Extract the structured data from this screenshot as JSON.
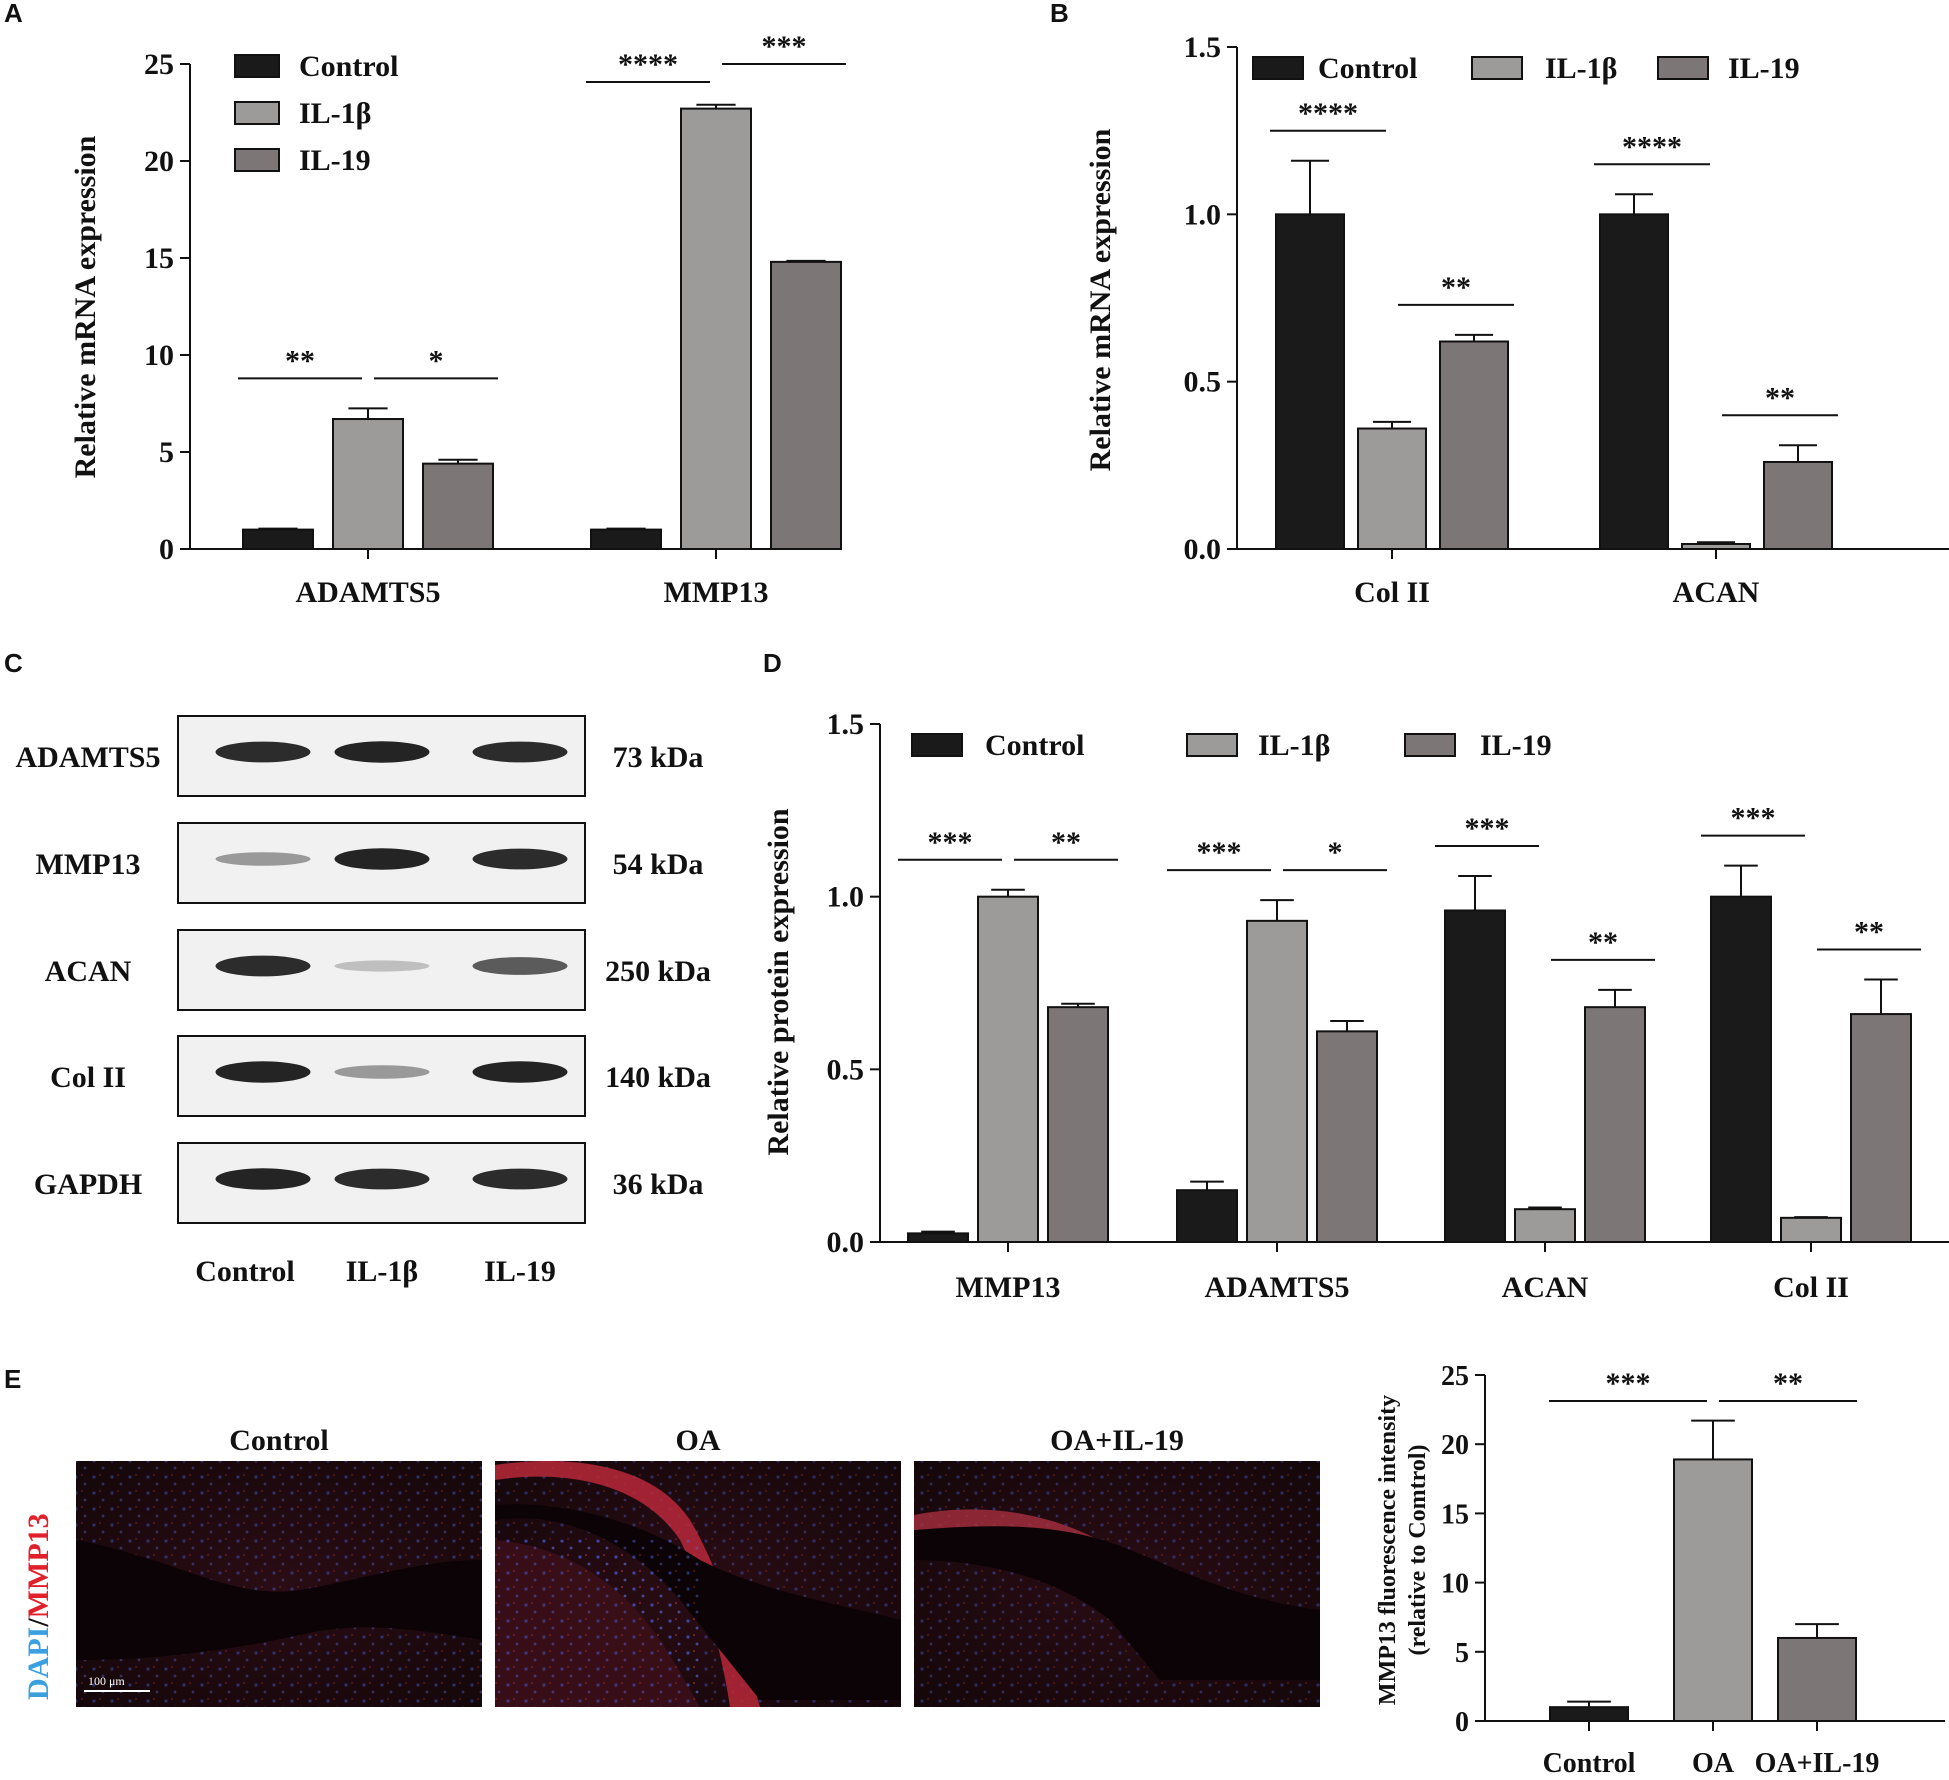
{
  "colors": {
    "Control": "#1a1a1a",
    "IL-1β": "#9d9a9a",
    "IL-19": "#7d7676",
    "OA": "#9d9a9a",
    "OA+IL-19": "#7d7676"
  },
  "panels": {
    "A": {
      "letter": "A"
    },
    "B": {
      "letter": "B"
    },
    "C": {
      "letter": "C",
      "rows": [
        {
          "protein": "ADAMTS5",
          "size": "73 kDa",
          "intensity": [
            0.9,
            0.95,
            0.9
          ]
        },
        {
          "protein": "MMP13",
          "size": "54 kDa",
          "intensity": [
            0.3,
            0.95,
            0.9
          ]
        },
        {
          "protein": "ACAN",
          "size": "250 kDa",
          "intensity": [
            0.9,
            0.1,
            0.65
          ]
        },
        {
          "protein": "Col II",
          "size": "140 kDa",
          "intensity": [
            0.95,
            0.3,
            0.95
          ]
        },
        {
          "protein": "GAPDH",
          "size": "36 kDa",
          "intensity": [
            0.95,
            0.9,
            0.9
          ]
        }
      ],
      "lanes": [
        "Control",
        "IL-1β",
        "IL-19"
      ]
    },
    "D": {
      "letter": "D"
    },
    "E": {
      "letter": "E",
      "images": [
        "Control",
        "OA",
        "OA+IL-19"
      ],
      "stain_label_dapi": "DAPI",
      "stain_label_sep": "/",
      "stain_label_mmp13": "MMP13",
      "scale_bar": "100 μm"
    }
  },
  "chart_data": [
    {
      "id": "A",
      "type": "bar",
      "ylabel": "Relative mRNA expression",
      "ylim": [
        0,
        25
      ],
      "yticks": [
        0,
        5,
        10,
        15,
        20,
        25
      ],
      "tick_labels": [
        "0",
        "5",
        "10",
        "15",
        "20",
        "25"
      ],
      "categories": [
        "ADAMTS5",
        "MMP13"
      ],
      "legend": "top-left, vertical",
      "series": [
        {
          "name": "Control",
          "values": [
            1.0,
            1.0
          ],
          "errors": [
            0.05,
            0.05
          ]
        },
        {
          "name": "IL-1β",
          "values": [
            6.7,
            22.7
          ],
          "errors": [
            0.55,
            0.2
          ]
        },
        {
          "name": "IL-19",
          "values": [
            4.4,
            14.8
          ],
          "errors": [
            0.2,
            0.05
          ]
        }
      ],
      "significance": [
        {
          "group": 0,
          "from": 0,
          "to": 1,
          "label": "**"
        },
        {
          "group": 0,
          "from": 1,
          "to": 2,
          "label": "*"
        },
        {
          "group": 1,
          "from": 0,
          "to": 1,
          "label": "****"
        },
        {
          "group": 1,
          "from": 1,
          "to": 2,
          "label": "***"
        }
      ]
    },
    {
      "id": "B",
      "type": "bar",
      "ylabel": "Relative mRNA expression",
      "ylim": [
        0,
        1.5
      ],
      "yticks": [
        0,
        0.5,
        1.0,
        1.5
      ],
      "tick_labels": [
        "0.0",
        "0.5",
        "1.0",
        "1.5"
      ],
      "categories": [
        "Col II",
        "ACAN"
      ],
      "legend": "top, horizontal",
      "series": [
        {
          "name": "Control",
          "values": [
            1.0,
            1.0
          ],
          "errors": [
            0.16,
            0.06
          ]
        },
        {
          "name": "IL-1β",
          "values": [
            0.36,
            0.015
          ],
          "errors": [
            0.02,
            0.005
          ]
        },
        {
          "name": "IL-19",
          "values": [
            0.62,
            0.26
          ],
          "errors": [
            0.02,
            0.05
          ]
        }
      ],
      "significance": [
        {
          "group": 0,
          "from": 0,
          "to": 1,
          "label": "****"
        },
        {
          "group": 0,
          "from": 1,
          "to": 2,
          "label": "**"
        },
        {
          "group": 1,
          "from": 0,
          "to": 1,
          "label": "****"
        },
        {
          "group": 1,
          "from": 1,
          "to": 2,
          "label": "**"
        }
      ]
    },
    {
      "id": "D",
      "type": "bar",
      "ylabel": "Relative protein expression",
      "ylim": [
        0,
        1.5
      ],
      "yticks": [
        0,
        0.5,
        1.0,
        1.5
      ],
      "tick_labels": [
        "0.0",
        "0.5",
        "1.0",
        "1.5"
      ],
      "categories": [
        "MMP13",
        "ADAMTS5",
        "ACAN",
        "Col II"
      ],
      "legend": "top, horizontal",
      "series": [
        {
          "name": "Control",
          "values": [
            0.025,
            0.15,
            0.96,
            1.0
          ],
          "errors": [
            0.005,
            0.025,
            0.1,
            0.09
          ]
        },
        {
          "name": "IL-1β",
          "values": [
            1.0,
            0.93,
            0.095,
            0.07
          ],
          "errors": [
            0.02,
            0.06,
            0.005,
            0.002
          ]
        },
        {
          "name": "IL-19",
          "values": [
            0.68,
            0.61,
            0.68,
            0.66
          ],
          "errors": [
            0.01,
            0.03,
            0.05,
            0.1
          ]
        }
      ],
      "significance": [
        {
          "group": 0,
          "from": 0,
          "to": 1,
          "label": "***"
        },
        {
          "group": 0,
          "from": 1,
          "to": 2,
          "label": "**"
        },
        {
          "group": 1,
          "from": 0,
          "to": 1,
          "label": "***"
        },
        {
          "group": 1,
          "from": 1,
          "to": 2,
          "label": "*"
        },
        {
          "group": 2,
          "from": 0,
          "to": 1,
          "label": "***"
        },
        {
          "group": 2,
          "from": 1,
          "to": 2,
          "label": "**"
        },
        {
          "group": 3,
          "from": 0,
          "to": 1,
          "label": "***"
        },
        {
          "group": 3,
          "from": 1,
          "to": 2,
          "label": "**"
        }
      ]
    },
    {
      "id": "E",
      "type": "bar",
      "ylabel": "MMP13 fluorescence intensity",
      "ylabel2": "(relative to Comtrol)",
      "ylim": [
        0,
        25
      ],
      "yticks": [
        0,
        5,
        10,
        15,
        20,
        25
      ],
      "tick_labels": [
        "0",
        "5",
        "10",
        "15",
        "20",
        "25"
      ],
      "categories": [
        "Control",
        "OA",
        "OA+IL-19"
      ],
      "series": [
        {
          "name": "",
          "values": [
            1.0,
            18.9,
            6.0
          ],
          "errors": [
            0.4,
            2.8,
            1.0
          ]
        }
      ],
      "significance": [
        {
          "from": 0,
          "to": 1,
          "label": "***"
        },
        {
          "from": 1,
          "to": 2,
          "label": "**"
        }
      ]
    }
  ]
}
